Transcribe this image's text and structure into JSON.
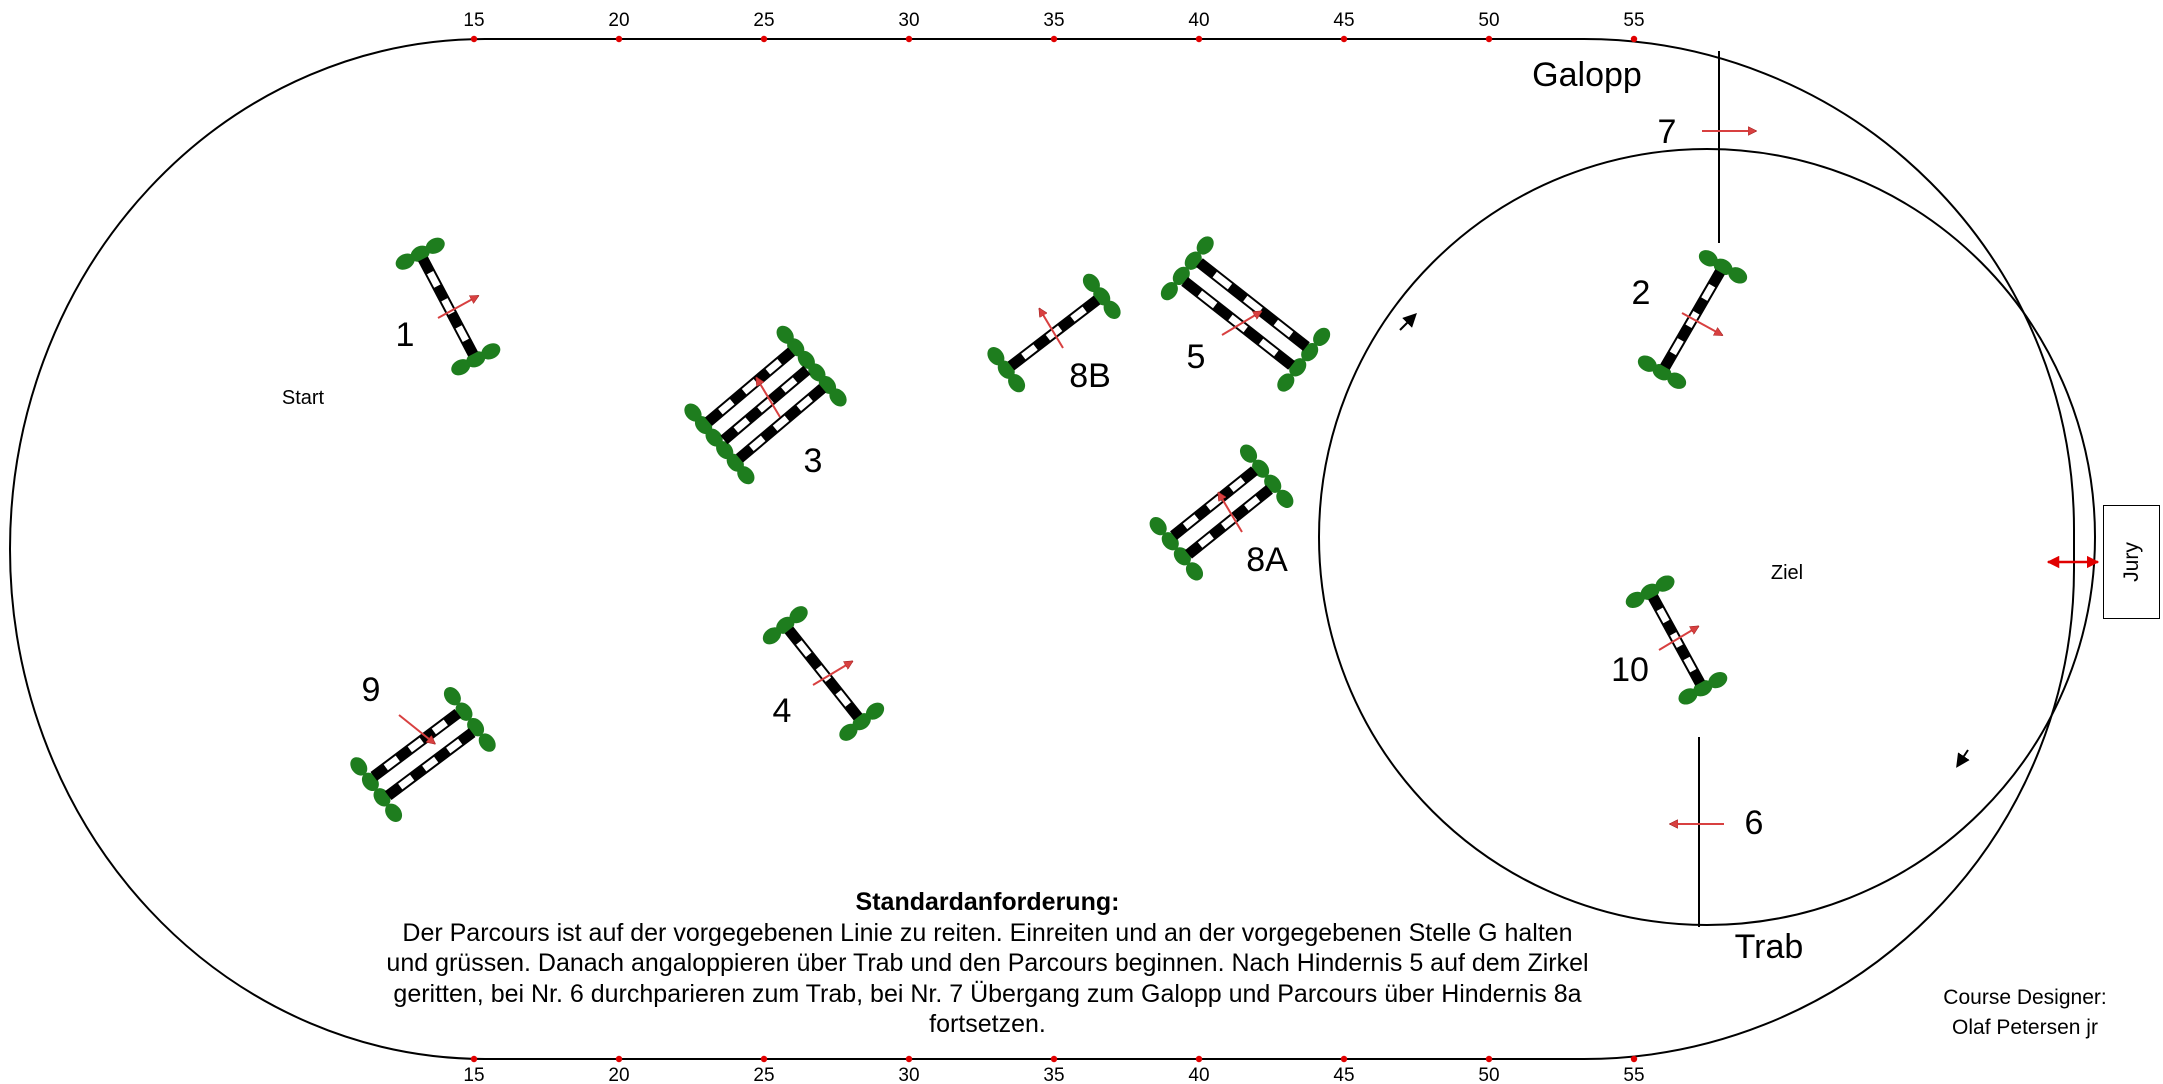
{
  "ruler_ticks": [
    "15",
    "20",
    "25",
    "30",
    "35",
    "40",
    "45",
    "50",
    "55"
  ],
  "labels": {
    "start": "Start",
    "finish": "Ziel",
    "canter": "Galopp",
    "trot": "Trab"
  },
  "obstacles": [
    {
      "number": "1"
    },
    {
      "number": "2"
    },
    {
      "number": "3"
    },
    {
      "number": "4"
    },
    {
      "number": "5"
    },
    {
      "number": "6"
    },
    {
      "number": "7"
    },
    {
      "number": "8A"
    },
    {
      "number": "8B"
    },
    {
      "number": "9"
    },
    {
      "number": "10"
    }
  ],
  "jury": "Jury",
  "requirement": {
    "title": "Standardanforderung:",
    "text": "Der Parcours ist auf der vorgegebenen Linie zu reiten. Einreiten und an der vorgegebenen Stelle G halten und grüssen. Danach angaloppieren über Trab und den Parcours beginnen. Nach Hindernis 5 auf dem Zirkel geritten, bei Nr. 6 durchparieren zum Trab, bei Nr. 7 Übergang zum Galopp und Parcours über Hindernis 8a fortsetzen."
  },
  "designer": {
    "line1": "Course Designer:",
    "line2": "Olaf Petersen jr"
  },
  "colors": {
    "outline": "#000000",
    "marker": "#e00000",
    "arrow": "#d84040",
    "bush": "#1e7d1e",
    "pole_dark": "#000000",
    "pole_light": "#ffffff"
  }
}
